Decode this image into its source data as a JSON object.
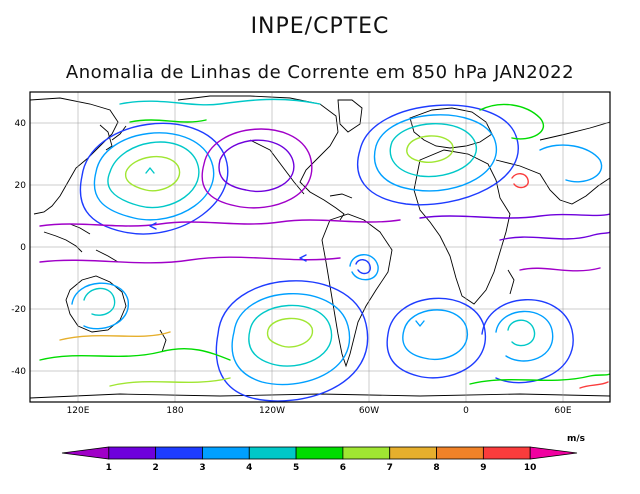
{
  "header": {
    "agency": "INPE/CPTEC",
    "title": "Anomalia de Linhas de Corrente em 850 hPa JAN2022"
  },
  "map": {
    "y_ticks": [
      "40",
      "20",
      "0",
      "-20",
      "-40"
    ],
    "x_ticks": [
      "120E",
      "180",
      "120W",
      "60W",
      "0",
      "60E"
    ]
  },
  "colorbar": {
    "units": "m/s",
    "labels": [
      "1",
      "2",
      "3",
      "4",
      "5",
      "6",
      "7",
      "8",
      "9",
      "10"
    ],
    "colors": [
      "#a000c8",
      "#6e00dc",
      "#1e3cff",
      "#00a0ff",
      "#00c8c8",
      "#00dc00",
      "#a0e632",
      "#e6af2d",
      "#f08228",
      "#fa3c3c",
      "#f000a0"
    ]
  }
}
